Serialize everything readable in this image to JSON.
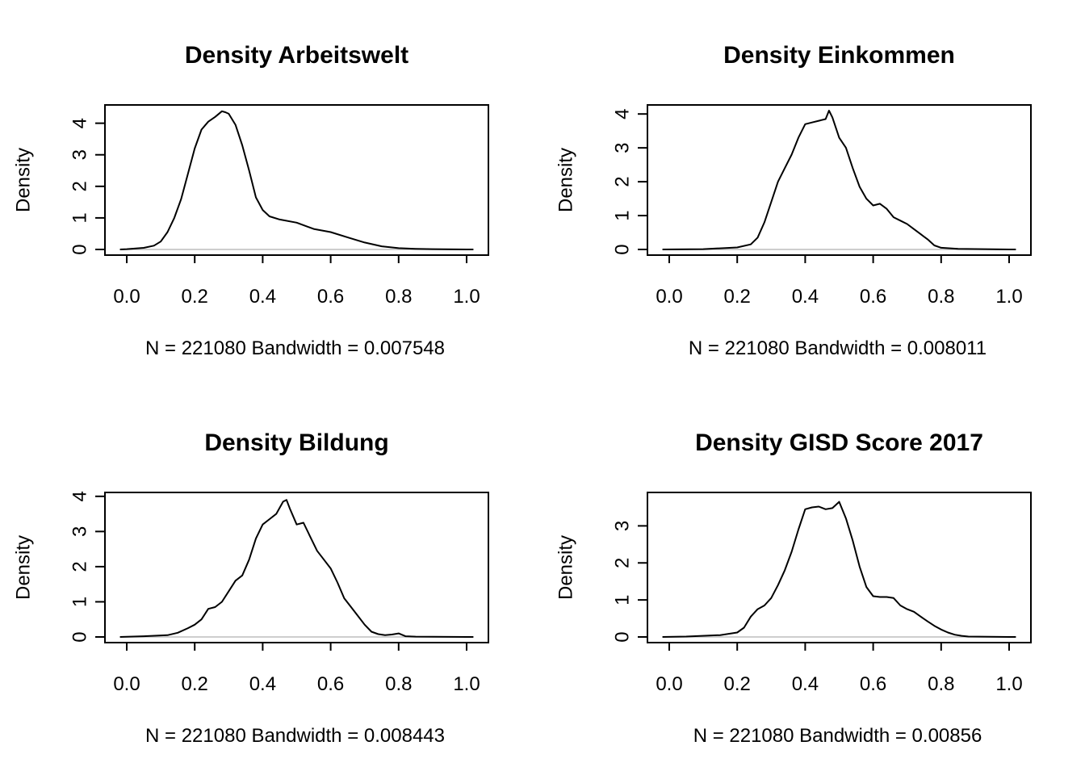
{
  "chart_data": [
    {
      "type": "line",
      "title": "Density Arbeitswelt",
      "xlabel": "N = 221080   Bandwidth = 0.007548",
      "ylabel": "Density",
      "xlim": [
        -0.02,
        1.02
      ],
      "ylim": [
        0,
        4.4
      ],
      "xticks": [
        "0.0",
        "0.2",
        "0.4",
        "0.6",
        "0.8",
        "1.0"
      ],
      "yticks": [
        "0",
        "1",
        "2",
        "3",
        "4"
      ],
      "series": [
        {
          "x": [
            -0.02,
            0.0,
            0.05,
            0.08,
            0.1,
            0.12,
            0.14,
            0.16,
            0.18,
            0.2,
            0.22,
            0.24,
            0.26,
            0.28,
            0.29,
            0.3,
            0.32,
            0.34,
            0.36,
            0.38,
            0.4,
            0.42,
            0.45,
            0.5,
            0.55,
            0.6,
            0.65,
            0.7,
            0.75,
            0.8,
            0.85,
            0.9,
            1.0,
            1.02
          ],
          "y": [
            0,
            0.01,
            0.05,
            0.12,
            0.25,
            0.55,
            1.0,
            1.6,
            2.4,
            3.2,
            3.8,
            4.05,
            4.2,
            4.38,
            4.35,
            4.3,
            3.95,
            3.3,
            2.5,
            1.65,
            1.25,
            1.05,
            0.95,
            0.85,
            0.65,
            0.55,
            0.38,
            0.22,
            0.1,
            0.04,
            0.02,
            0.01,
            0,
            0
          ]
        }
      ]
    },
    {
      "type": "line",
      "title": "Density Einkommen",
      "xlabel": "N = 221080   Bandwidth = 0.008011",
      "ylabel": "Density",
      "xlim": [
        -0.02,
        1.02
      ],
      "ylim": [
        0,
        4.1
      ],
      "xticks": [
        "0.0",
        "0.2",
        "0.4",
        "0.6",
        "0.8",
        "1.0"
      ],
      "yticks": [
        "0",
        "1",
        "2",
        "3",
        "4"
      ],
      "series": [
        {
          "x": [
            -0.02,
            0.1,
            0.2,
            0.24,
            0.26,
            0.28,
            0.3,
            0.32,
            0.34,
            0.36,
            0.38,
            0.4,
            0.42,
            0.44,
            0.46,
            0.47,
            0.48,
            0.5,
            0.52,
            0.54,
            0.56,
            0.58,
            0.6,
            0.62,
            0.64,
            0.66,
            0.68,
            0.7,
            0.72,
            0.74,
            0.76,
            0.78,
            0.8,
            0.85,
            1.0,
            1.02
          ],
          "y": [
            0,
            0.01,
            0.06,
            0.15,
            0.35,
            0.8,
            1.4,
            2.0,
            2.4,
            2.8,
            3.3,
            3.7,
            3.75,
            3.8,
            3.85,
            4.1,
            3.9,
            3.3,
            3.0,
            2.4,
            1.85,
            1.5,
            1.3,
            1.35,
            1.2,
            0.95,
            0.85,
            0.75,
            0.6,
            0.45,
            0.3,
            0.12,
            0.05,
            0.02,
            0,
            0
          ]
        }
      ]
    },
    {
      "type": "line",
      "title": "Density Bildung",
      "xlabel": "N = 221080   Bandwidth = 0.008443",
      "ylabel": "Density",
      "xlim": [
        -0.02,
        1.02
      ],
      "ylim": [
        0,
        3.95
      ],
      "xticks": [
        "0.0",
        "0.2",
        "0.4",
        "0.6",
        "0.8",
        "1.0"
      ],
      "yticks": [
        "0",
        "1",
        "2",
        "3",
        "4"
      ],
      "series": [
        {
          "x": [
            -0.02,
            0.05,
            0.12,
            0.15,
            0.18,
            0.2,
            0.22,
            0.24,
            0.26,
            0.28,
            0.3,
            0.32,
            0.34,
            0.36,
            0.38,
            0.4,
            0.42,
            0.44,
            0.46,
            0.47,
            0.48,
            0.5,
            0.52,
            0.54,
            0.56,
            0.58,
            0.6,
            0.62,
            0.64,
            0.66,
            0.68,
            0.7,
            0.72,
            0.74,
            0.76,
            0.78,
            0.8,
            0.82,
            0.85,
            1.0,
            1.02
          ],
          "y": [
            0,
            0.02,
            0.05,
            0.12,
            0.25,
            0.35,
            0.5,
            0.8,
            0.85,
            1.0,
            1.3,
            1.6,
            1.75,
            2.2,
            2.8,
            3.2,
            3.35,
            3.5,
            3.85,
            3.9,
            3.65,
            3.2,
            3.25,
            2.85,
            2.45,
            2.2,
            1.95,
            1.55,
            1.1,
            0.85,
            0.6,
            0.35,
            0.15,
            0.08,
            0.05,
            0.07,
            0.1,
            0.02,
            0.01,
            0,
            0
          ]
        }
      ]
    },
    {
      "type": "line",
      "title": "Density GISD Score 2017",
      "xlabel": "N = 221080   Bandwidth = 0.00856",
      "ylabel": "Density",
      "xlim": [
        -0.02,
        1.02
      ],
      "ylim": [
        0,
        3.75
      ],
      "xticks": [
        "0.0",
        "0.2",
        "0.4",
        "0.6",
        "0.8",
        "1.0"
      ],
      "yticks": [
        "0",
        "1",
        "2",
        "3"
      ],
      "series": [
        {
          "x": [
            -0.02,
            0.05,
            0.15,
            0.2,
            0.22,
            0.24,
            0.26,
            0.28,
            0.3,
            0.32,
            0.34,
            0.36,
            0.38,
            0.4,
            0.42,
            0.44,
            0.46,
            0.48,
            0.5,
            0.52,
            0.54,
            0.56,
            0.58,
            0.6,
            0.62,
            0.64,
            0.66,
            0.68,
            0.7,
            0.72,
            0.74,
            0.76,
            0.78,
            0.8,
            0.82,
            0.84,
            0.86,
            0.88,
            1.0,
            1.02
          ],
          "y": [
            0,
            0.01,
            0.05,
            0.12,
            0.25,
            0.55,
            0.75,
            0.85,
            1.05,
            1.4,
            1.8,
            2.3,
            2.9,
            3.45,
            3.5,
            3.52,
            3.45,
            3.48,
            3.65,
            3.2,
            2.6,
            1.9,
            1.35,
            1.1,
            1.08,
            1.08,
            1.05,
            0.85,
            0.75,
            0.68,
            0.55,
            0.42,
            0.3,
            0.2,
            0.12,
            0.06,
            0.03,
            0.01,
            0,
            0
          ]
        }
      ]
    }
  ]
}
